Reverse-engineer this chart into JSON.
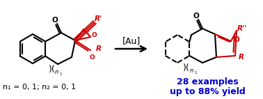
{
  "background_color": "#ffffff",
  "black_color": "#000000",
  "red_color": "#cc0000",
  "blue_color": "#0000cc",
  "au_label": "[Au]",
  "subtitle1": "28 examples",
  "subtitle2": "up to 88% yield",
  "footnote": "n₁ = 0, 1; n₂ = 0, 1",
  "fig_width": 3.78,
  "fig_height": 1.42,
  "dpi": 100
}
